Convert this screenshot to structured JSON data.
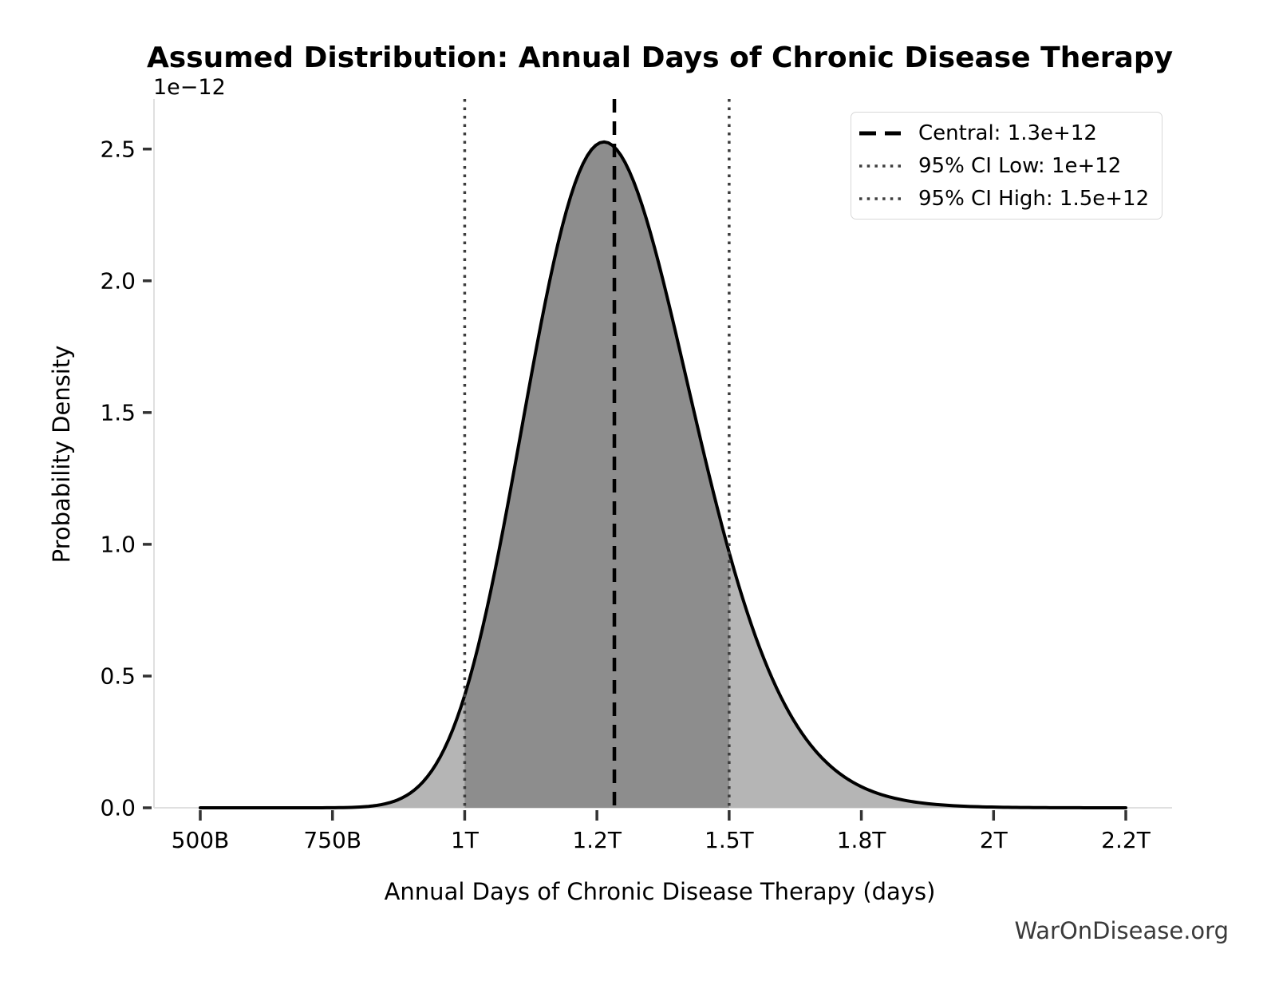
{
  "page": {
    "background": "#ffffff",
    "watermark": "WarOnDisease.org"
  },
  "chart_data": {
    "type": "area",
    "title": "Assumed Distribution: Annual Days of Chronic Disease Therapy",
    "xlabel": "Annual Days of Chronic Disease Therapy (days)",
    "ylabel": "Probability Density",
    "y_offset_label": "1e−12",
    "grid": false,
    "legend_position": "upper right",
    "x_ticks": {
      "values_days": [
        500000000000.0,
        750000000000.0,
        1000000000000.0,
        1250000000000.0,
        1500000000000.0,
        1750000000000.0,
        2000000000000.0,
        2250000000000.0
      ],
      "labels": [
        "500B",
        "750B",
        "1T",
        "1.2T",
        "1.5T",
        "1.8T",
        "2T",
        "2.2T"
      ]
    },
    "y_ticks": {
      "values_e12": [
        0.0,
        0.5,
        1.0,
        1.5,
        2.0,
        2.5
      ],
      "labels": [
        "0.0",
        "0.5",
        "1.0",
        "1.5",
        "2.0",
        "2.5"
      ],
      "scale_note": "1e-12"
    },
    "xlim_days": [
      412500000000.0,
      2337500000000.0
    ],
    "ylim_density": [
      0,
      2.69e-12
    ],
    "distribution": {
      "family": "lognormal",
      "median_days": 1283000000000.0,
      "sigma_log": 0.124,
      "curve_range_days": [
        500000000000.0,
        2250000000000.0
      ]
    },
    "read_points": [
      {
        "x_days": 1000000000000.0,
        "density": 4.3e-13
      },
      {
        "x_days": 1263000000000.0,
        "density": 2.53e-12,
        "note": "peak"
      },
      {
        "x_days": 1500000000000.0,
        "density": 9.7e-13
      }
    ],
    "series_lines": [
      {
        "id": "central",
        "label": "Central: 1.3e+12",
        "value_days": 1283000000000.0,
        "style": "dashed",
        "color": "#000000"
      },
      {
        "id": "ci_low",
        "label": "95% CI Low: 1e+12",
        "value_days": 1000000000000.0,
        "style": "dotted",
        "color": "#3d3d3d"
      },
      {
        "id": "ci_high",
        "label": "95% CI High: 1.5e+12",
        "value_days": 1500000000000.0,
        "style": "dotted",
        "color": "#3d3d3d"
      }
    ],
    "colors": {
      "curve": "#000000",
      "fill_outer": "#b5b5b5",
      "fill_ci": "#8d8d8d",
      "spine": "#e0e0e0",
      "tick": "#333333",
      "text": "#000000"
    }
  }
}
